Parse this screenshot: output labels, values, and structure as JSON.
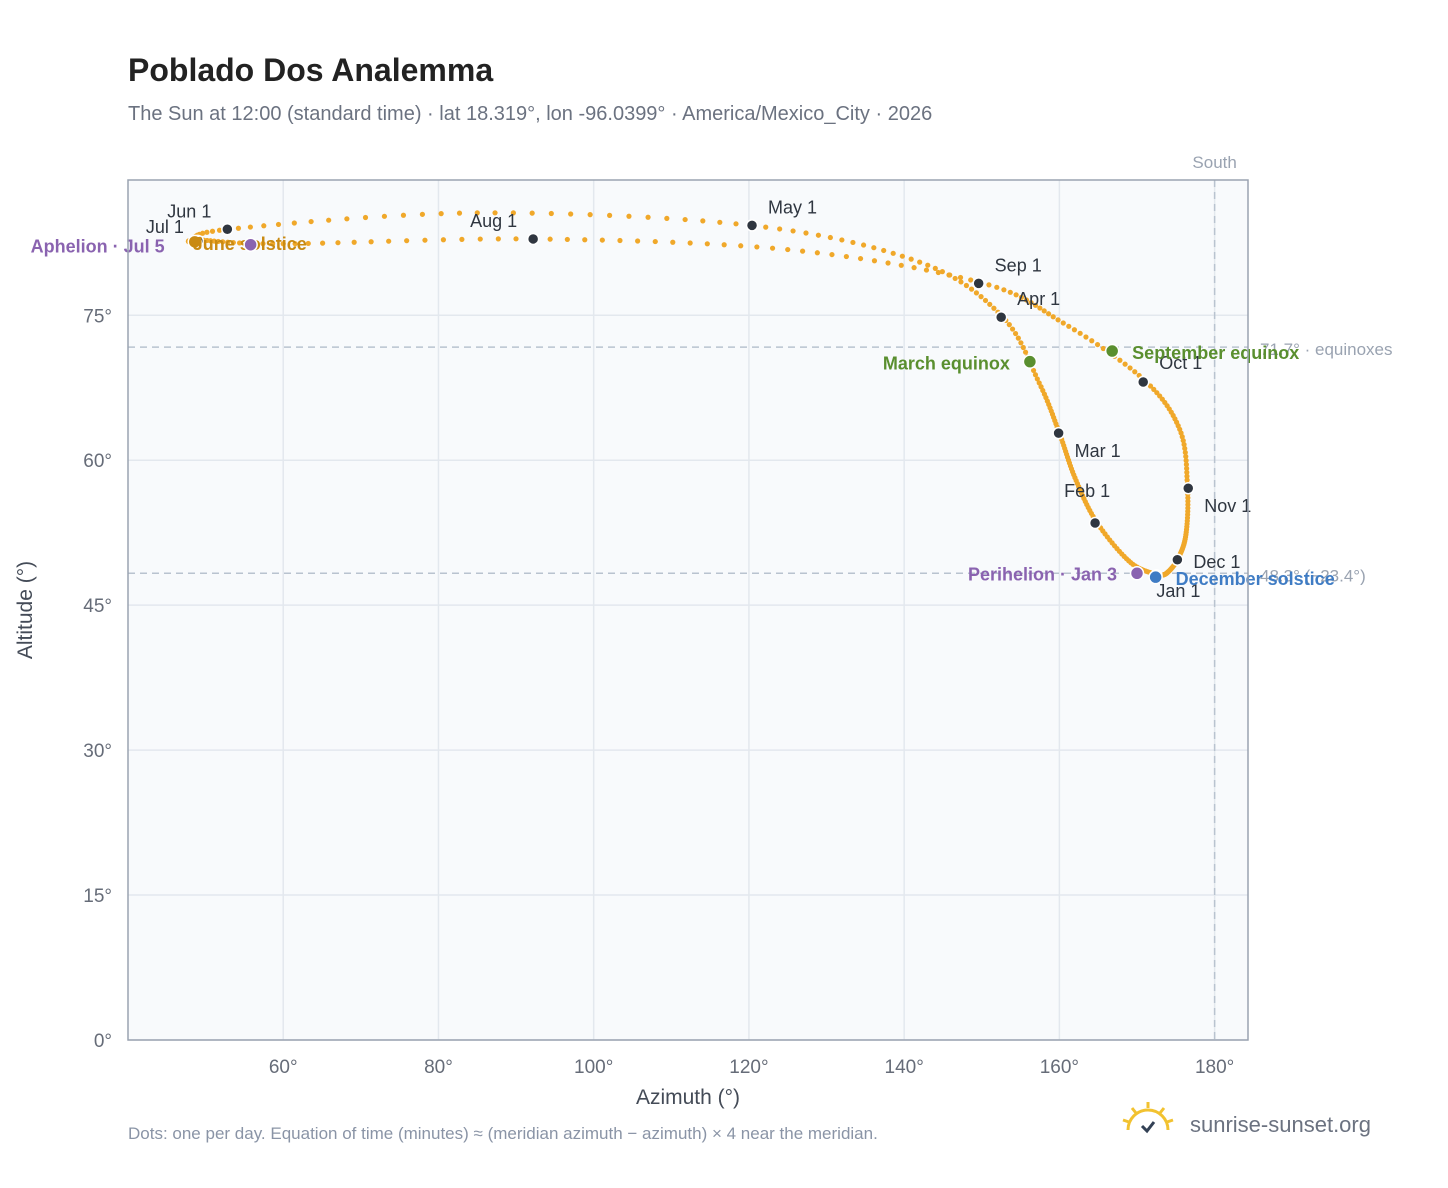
{
  "title": "Poblado Dos Analemma",
  "subtitle": "The Sun at 12:00 (standard time) · lat 18.319°, lon -96.0399° · America/Mexico_City · 2026",
  "footnote": "Dots: one per day. Equation of time (minutes) ≈ (meridian azimuth − azimuth) × 4 near the meridian.",
  "brand": "sunrise-sunset.org",
  "colors": {
    "curve": "#f0a82a",
    "month_marker": "#2f3640",
    "equinox": "#5a8f2f",
    "solstice_summer": "#c98a12",
    "solstice_winter": "#3f7cc4",
    "apsis": "#8a63b0",
    "grid": "#e3e8ee",
    "plot_bg": "#f8fafc",
    "reference_line": "#b9c3cf",
    "logo": "#f2c230"
  },
  "chart_data": {
    "type": "scatter",
    "title": "Poblado Dos Analemma",
    "xlabel": "Azimuth (°)",
    "ylabel": "Altitude (°)",
    "xlim": [
      40,
      184.3
    ],
    "ylim": [
      0,
      89
    ],
    "x_ticks": [
      60,
      80,
      100,
      120,
      140,
      160,
      180
    ],
    "y_ticks": [
      0,
      15,
      30,
      45,
      60,
      75
    ],
    "x_tick_labels": [
      "60°",
      "80°",
      "100°",
      "120°",
      "140°",
      "160°",
      "180°"
    ],
    "y_tick_labels": [
      "0°",
      "15°",
      "30°",
      "45°",
      "60°",
      "75°"
    ],
    "grid": true,
    "south_line": {
      "azimuth": 180,
      "label": "South"
    },
    "reference_lines": [
      {
        "altitude": 71.7,
        "label": "71.7° · equinoxes"
      },
      {
        "altitude": 48.3,
        "label": "48.3° (−23.4°)"
      }
    ],
    "curve_points": [
      {
        "date": "Jan 1",
        "az": 172.8,
        "alt": 48.1
      },
      {
        "date": "Jan 15",
        "az": 169.2,
        "alt": 49.4
      },
      {
        "date": "Feb 1",
        "az": 164.8,
        "alt": 53.6
      },
      {
        "date": "Feb 15",
        "az": 162.0,
        "alt": 58.2
      },
      {
        "date": "Mar 1",
        "az": 160.0,
        "alt": 62.8
      },
      {
        "date": "Mar 15",
        "az": 157.4,
        "alt": 68.0
      },
      {
        "date": "Apr 1",
        "az": 152.6,
        "alt": 74.9
      },
      {
        "date": "Apr 15",
        "az": 142.0,
        "alt": 80.5
      },
      {
        "date": "May 1",
        "az": 120.3,
        "alt": 84.3
      },
      {
        "date": "May 15",
        "az": 85.0,
        "alt": 85.6
      },
      {
        "date": "Jun 1",
        "az": 52.9,
        "alt": 83.9
      },
      {
        "date": "Jun 21",
        "az": 48.5,
        "alt": 82.6
      },
      {
        "date": "Jul 1",
        "az": 49.0,
        "alt": 82.8
      },
      {
        "date": "Jul 15",
        "az": 60.0,
        "alt": 82.4
      },
      {
        "date": "Aug 1",
        "az": 92.2,
        "alt": 82.9
      },
      {
        "date": "Aug 15",
        "az": 125.0,
        "alt": 81.8
      },
      {
        "date": "Sep 1",
        "az": 149.8,
        "alt": 78.4
      },
      {
        "date": "Sep 15",
        "az": 160.5,
        "alt": 74.2
      },
      {
        "date": "Oct 1",
        "az": 170.8,
        "alt": 68.4
      },
      {
        "date": "Oct 15",
        "az": 175.5,
        "alt": 63.2
      },
      {
        "date": "Nov 1",
        "az": 176.5,
        "alt": 57.2
      },
      {
        "date": "Nov 15",
        "az": 176.3,
        "alt": 52.3
      },
      {
        "date": "Dec 1",
        "az": 175.2,
        "alt": 49.7
      },
      {
        "date": "Dec 15",
        "az": 173.8,
        "alt": 48.3
      },
      {
        "date": "Dec 31",
        "az": 172.8,
        "alt": 48.1
      }
    ],
    "month_markers": [
      {
        "label": "Jan 1",
        "az": 172.5,
        "alt": 48.1
      },
      {
        "label": "Feb 1",
        "az": 164.6,
        "alt": 53.5
      },
      {
        "label": "Mar 1",
        "az": 159.9,
        "alt": 62.8
      },
      {
        "label": "Apr 1",
        "az": 152.5,
        "alt": 74.8
      },
      {
        "label": "May 1",
        "az": 120.4,
        "alt": 84.3
      },
      {
        "label": "Jun 1",
        "az": 52.8,
        "alt": 83.9
      },
      {
        "label": "Jul 1",
        "az": 49.0,
        "alt": 82.7
      },
      {
        "label": "Aug 1",
        "az": 92.2,
        "alt": 82.9
      },
      {
        "label": "Sep 1",
        "az": 149.6,
        "alt": 78.3
      },
      {
        "label": "Oct 1",
        "az": 170.8,
        "alt": 68.1
      },
      {
        "label": "Nov 1",
        "az": 176.6,
        "alt": 57.1
      },
      {
        "label": "Dec 1",
        "az": 175.2,
        "alt": 49.7
      }
    ],
    "events": [
      {
        "label": "March equinox",
        "az": 156.2,
        "alt": 70.2,
        "kind": "equinox"
      },
      {
        "label": "September equinox",
        "az": 166.8,
        "alt": 71.3,
        "kind": "equinox"
      },
      {
        "label": "June solstice",
        "az": 48.6,
        "alt": 82.6,
        "kind": "solstice_summer"
      },
      {
        "label": "December solstice",
        "az": 172.4,
        "alt": 47.9,
        "kind": "solstice_winter"
      },
      {
        "label": "Aphelion · Jul 5",
        "az": 55.8,
        "alt": 82.3,
        "kind": "apsis"
      },
      {
        "label": "Perihelion · Jan 3",
        "az": 170.0,
        "alt": 48.3,
        "kind": "apsis"
      }
    ]
  }
}
